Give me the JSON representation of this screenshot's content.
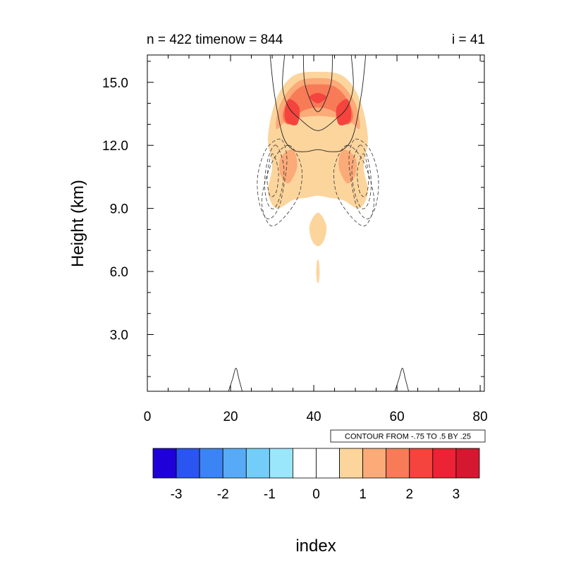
{
  "chart_data": {
    "type": "heatmap",
    "title_left": "n = 422 timenow = 844",
    "title_right": "i = 41",
    "xlabel": "index",
    "ylabel": "Height (km)",
    "xlim": [
      0,
      81
    ],
    "ylim": [
      0.3,
      16.3
    ],
    "x_ticks": [
      "0",
      "20",
      "40",
      "60",
      "80"
    ],
    "x_tick_values": [
      0,
      20,
      40,
      60,
      80
    ],
    "y_ticks": [
      "3.0",
      "6.0",
      "9.0",
      "12.0",
      "15.0"
    ],
    "y_tick_values": [
      3,
      6,
      9,
      12,
      15
    ],
    "contour_info": "CONTOUR FROM -.75 TO .5 BY .25",
    "colorbar": {
      "colors": [
        "#2000d8",
        "#2b55f0",
        "#3b84f3",
        "#57abf6",
        "#72cef8",
        "#9ae6fb",
        "#ffffff",
        "#ffffff",
        "#fcd59d",
        "#fbaa78",
        "#f87b57",
        "#f4443d",
        "#ec2335",
        "#d41830"
      ],
      "labels": [
        "-3",
        "-2",
        "-1",
        "0",
        "1",
        "2",
        "3"
      ]
    },
    "field_notes": "Filled contours of positive values (about 0.5 to 3) concentrated around index 30-52, height 8-15.5 km; maximum ~3 near index 33-36 and 47-49 at ~13.5-14 km. Line contours (solid positive, dashed negative) overlay the field.",
    "filled_regions": [
      {
        "level": 1,
        "points": [
          [
            41,
            15.5
          ],
          [
            47,
            15.3
          ],
          [
            51,
            14.2
          ],
          [
            53,
            12.4
          ],
          [
            52,
            11.0
          ],
          [
            53,
            9.8
          ],
          [
            51,
            9.0
          ],
          [
            47,
            9.4
          ],
          [
            44,
            9.5
          ],
          [
            41,
            9.6
          ],
          [
            38,
            9.5
          ],
          [
            35,
            9.4
          ],
          [
            31,
            9.0
          ],
          [
            29,
            9.8
          ],
          [
            30,
            11.0
          ],
          [
            29,
            12.4
          ],
          [
            31,
            14.2
          ],
          [
            35,
            15.3
          ]
        ]
      },
      {
        "level": 1,
        "points": [
          [
            41,
            8.8
          ],
          [
            43,
            8.2
          ],
          [
            42.5,
            7.5
          ],
          [
            41,
            7.2
          ],
          [
            39.5,
            7.5
          ],
          [
            39,
            8.2
          ]
        ]
      },
      {
        "level": 1,
        "points": [
          [
            41.2,
            6.5
          ],
          [
            41.4,
            6.0
          ],
          [
            41.2,
            5.5
          ],
          [
            40.8,
            5.5
          ],
          [
            40.6,
            6.0
          ],
          [
            40.8,
            6.5
          ]
        ]
      },
      {
        "level": 2,
        "points": [
          [
            41,
            15.2
          ],
          [
            46,
            15.0
          ],
          [
            50,
            14.0
          ],
          [
            51,
            12.8
          ],
          [
            48,
            13.2
          ],
          [
            41,
            13.4
          ],
          [
            34,
            13.2
          ],
          [
            31,
            12.8
          ],
          [
            32,
            14.0
          ],
          [
            36,
            15.0
          ]
        ]
      },
      {
        "level": 2,
        "points": [
          [
            35,
            11.8
          ],
          [
            36,
            11.0
          ],
          [
            34,
            10.2
          ],
          [
            32,
            10.6
          ],
          [
            32,
            11.4
          ]
        ]
      },
      {
        "level": 2,
        "points": [
          [
            47,
            11.8
          ],
          [
            46,
            11.0
          ],
          [
            48,
            10.2
          ],
          [
            50,
            10.6
          ],
          [
            50,
            11.4
          ]
        ]
      },
      {
        "level": 3,
        "points": [
          [
            41,
            14.9
          ],
          [
            45,
            14.8
          ],
          [
            48,
            14.2
          ],
          [
            49.5,
            13.4
          ],
          [
            48,
            13.0
          ],
          [
            45,
            13.6
          ],
          [
            41,
            13.8
          ],
          [
            37,
            13.6
          ],
          [
            34,
            13.0
          ],
          [
            32.5,
            13.4
          ],
          [
            34,
            14.2
          ],
          [
            37,
            14.8
          ]
        ]
      },
      {
        "level": 4,
        "points": [
          [
            34,
            14.2
          ],
          [
            36.5,
            13.8
          ],
          [
            36,
            13.0
          ],
          [
            33.5,
            13.1
          ],
          [
            33,
            13.6
          ]
        ]
      },
      {
        "level": 4,
        "points": [
          [
            48,
            14.2
          ],
          [
            45.5,
            13.8
          ],
          [
            46,
            13.0
          ],
          [
            48.5,
            13.1
          ],
          [
            49,
            13.6
          ]
        ]
      },
      {
        "level": 4,
        "points": [
          [
            41,
            14.5
          ],
          [
            43,
            14.3
          ],
          [
            41,
            14.0
          ],
          [
            39,
            14.3
          ]
        ]
      }
    ],
    "line_contours": {
      "solid": [
        [
          [
            19.5,
            0.3
          ],
          [
            20.5,
            0.9
          ],
          [
            21.3,
            1.4
          ],
          [
            22.0,
            0.9
          ],
          [
            22.8,
            0.3
          ]
        ],
        [
          [
            59.5,
            0.3
          ],
          [
            60.5,
            0.9
          ],
          [
            61.3,
            1.4
          ],
          [
            62.0,
            0.9
          ],
          [
            62.8,
            0.3
          ]
        ],
        [
          [
            33,
            16.3
          ],
          [
            32.5,
            14.8
          ],
          [
            34,
            13.8
          ],
          [
            37,
            13.2
          ],
          [
            39.5,
            12.8
          ],
          [
            41,
            12.7
          ],
          [
            42.5,
            12.8
          ],
          [
            45,
            13.2
          ],
          [
            48,
            13.8
          ],
          [
            49.5,
            14.8
          ],
          [
            49,
            16.3
          ]
        ],
        [
          [
            37.5,
            16.3
          ],
          [
            37.8,
            15.0
          ],
          [
            39.5,
            14.0
          ],
          [
            41,
            13.6
          ],
          [
            42.5,
            14.0
          ],
          [
            44.2,
            15.0
          ],
          [
            44.5,
            16.3
          ]
        ],
        [
          [
            29.5,
            16.3
          ],
          [
            30.5,
            14.5
          ],
          [
            32.5,
            12.5
          ],
          [
            35,
            11.8
          ],
          [
            38,
            11.7
          ],
          [
            41,
            11.8
          ],
          [
            44,
            11.7
          ],
          [
            47,
            11.8
          ],
          [
            49.5,
            12.5
          ],
          [
            51.5,
            14.5
          ],
          [
            52.5,
            16.3
          ]
        ]
      ],
      "dashed": [
        [
          [
            32,
            12.3
          ],
          [
            28.5,
            11.8
          ],
          [
            26.5,
            10.5
          ],
          [
            27,
            9.2
          ],
          [
            29,
            8.5
          ],
          [
            31.5,
            9.0
          ],
          [
            33,
            10.3
          ],
          [
            33.5,
            11.5
          ]
        ],
        [
          [
            30,
            11.6
          ],
          [
            28.8,
            10.5
          ],
          [
            29.5,
            9.6
          ],
          [
            31,
            9.8
          ],
          [
            31.5,
            10.8
          ]
        ],
        [
          [
            31,
            12.0
          ],
          [
            29.2,
            11.5
          ],
          [
            28.2,
            10.3
          ],
          [
            28.8,
            9.3
          ],
          [
            30.5,
            9.0
          ],
          [
            32.2,
            9.8
          ],
          [
            32.8,
            11.0
          ]
        ],
        [
          [
            34,
            12.0
          ],
          [
            30,
            11.2
          ],
          [
            27.5,
            9.4
          ],
          [
            29.5,
            8.2
          ],
          [
            33,
            8.6
          ],
          [
            36.5,
            9.7
          ],
          [
            37,
            11.0
          ]
        ],
        [
          [
            50,
            12.3
          ],
          [
            53.5,
            11.8
          ],
          [
            55.5,
            10.5
          ],
          [
            55,
            9.2
          ],
          [
            53,
            8.5
          ],
          [
            50.5,
            9.0
          ],
          [
            49,
            10.3
          ],
          [
            48.5,
            11.5
          ]
        ],
        [
          [
            52,
            11.6
          ],
          [
            53.2,
            10.5
          ],
          [
            52.5,
            9.6
          ],
          [
            51,
            9.8
          ],
          [
            50.5,
            10.8
          ]
        ],
        [
          [
            51,
            12.0
          ],
          [
            52.8,
            11.5
          ],
          [
            53.8,
            10.3
          ],
          [
            53.2,
            9.3
          ],
          [
            51.5,
            9.0
          ],
          [
            49.8,
            9.8
          ],
          [
            49.2,
            11.0
          ]
        ],
        [
          [
            48,
            12.0
          ],
          [
            52,
            11.2
          ],
          [
            54.5,
            9.4
          ],
          [
            52.5,
            8.2
          ],
          [
            49,
            8.6
          ],
          [
            45.5,
            9.7
          ],
          [
            45,
            11.0
          ]
        ]
      ]
    }
  }
}
